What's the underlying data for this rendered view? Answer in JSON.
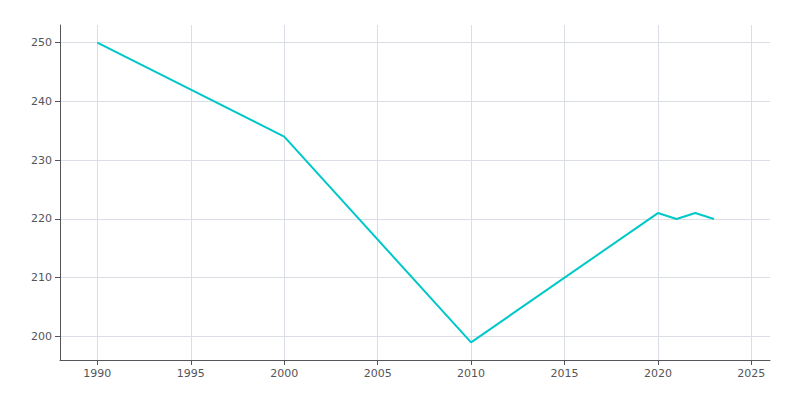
{
  "chart_data": {
    "type": "line",
    "x": [
      1990,
      2000,
      2010,
      2020,
      2021,
      2022,
      2023
    ],
    "values": [
      250,
      234,
      199,
      221,
      220,
      221,
      220
    ],
    "color": "#00C8C8",
    "xlim": [
      1988,
      2026
    ],
    "ylim": [
      196,
      253
    ],
    "xticks": [
      1990,
      1995,
      2000,
      2005,
      2010,
      2015,
      2020,
      2025
    ],
    "yticks": [
      200,
      210,
      220,
      230,
      240,
      250
    ],
    "grid": true
  }
}
